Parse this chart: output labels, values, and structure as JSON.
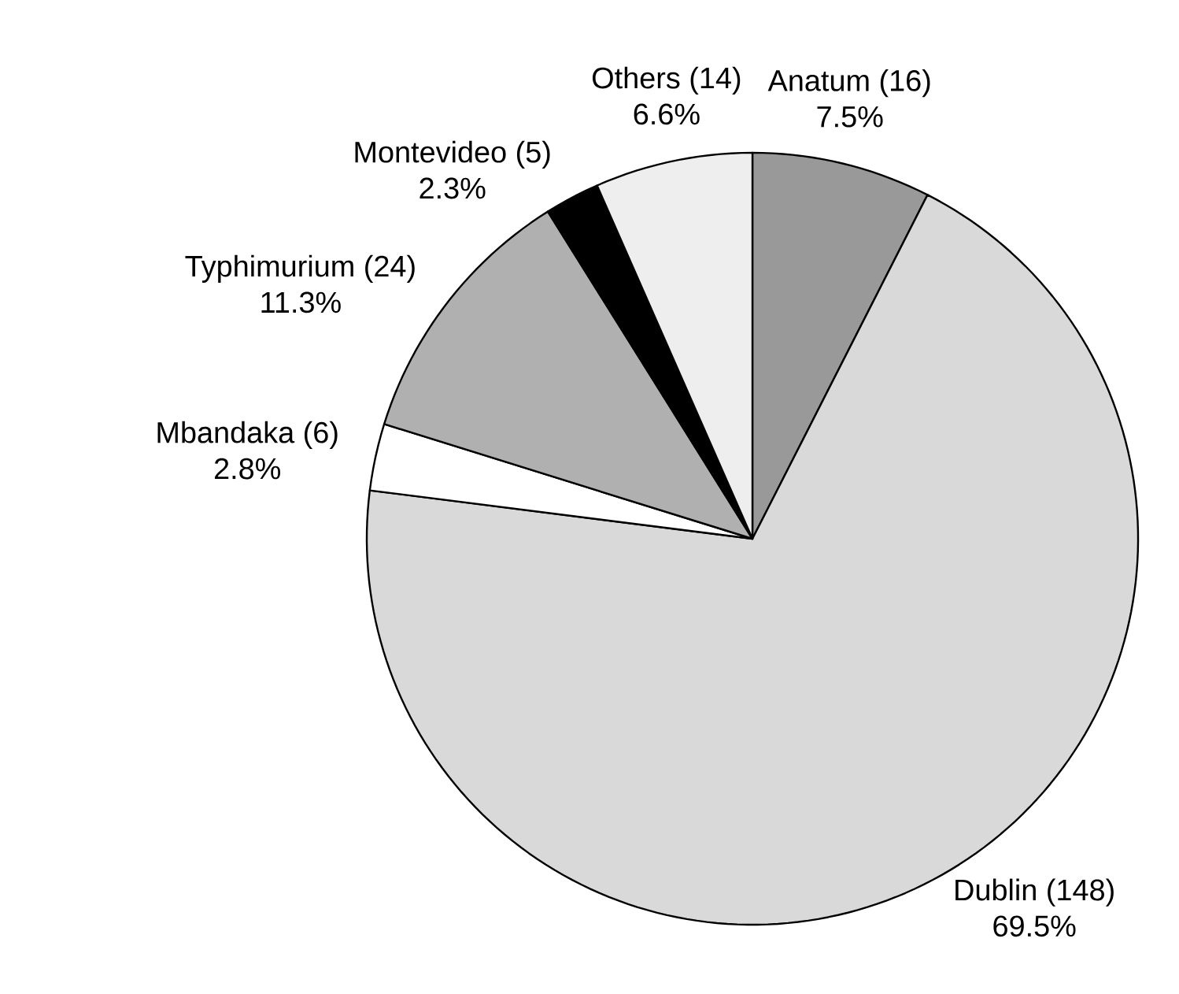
{
  "chart_data": {
    "type": "pie",
    "categories": [
      "Anatum (16)",
      "Dublin (148)",
      "Mbandaka (6)",
      "Typhimurium (24)",
      "Montevideo (5)",
      "Others (14)"
    ],
    "values": [
      7.5,
      69.5,
      2.8,
      11.3,
      2.3,
      6.6
    ],
    "value_labels": [
      "7.5%",
      "69.5%",
      "2.8%",
      "11.3%",
      "2.3%",
      "6.6%"
    ],
    "colors": [
      "#999999",
      "#d9d9d9",
      "#ffffff",
      "#b0b0b0",
      "#000000",
      "#eeeeee"
    ]
  }
}
